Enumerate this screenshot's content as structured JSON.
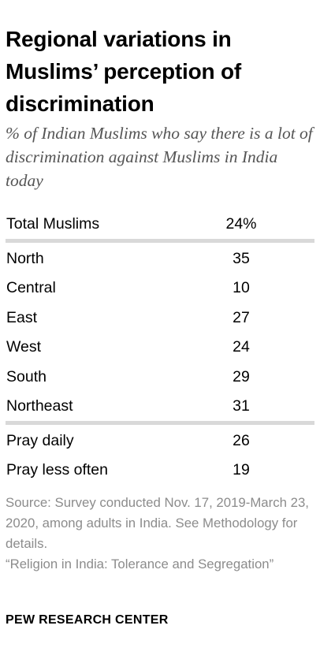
{
  "title": "Regional variations in Muslims’ perception of discrimination",
  "subtitle": "% of Indian Muslims who say there is a lot of discrimination against Muslims in India today",
  "chart_data": {
    "type": "table",
    "title": "Regional variations in Muslims’ perception of discrimination",
    "subtitle": "% of Indian Muslims who say there is a lot of discrimination against Muslims in India today",
    "groups": [
      {
        "rows": [
          {
            "label": "Total Muslims",
            "value": 24,
            "display": "24%"
          }
        ]
      },
      {
        "rows": [
          {
            "label": "North",
            "value": 35,
            "display": "35"
          },
          {
            "label": "Central",
            "value": 10,
            "display": "10"
          },
          {
            "label": "East",
            "value": 27,
            "display": "27"
          },
          {
            "label": "West",
            "value": 24,
            "display": "24"
          },
          {
            "label": "South",
            "value": 29,
            "display": "29"
          },
          {
            "label": "Northeast",
            "value": 31,
            "display": "31"
          }
        ]
      },
      {
        "rows": [
          {
            "label": "Pray daily",
            "value": 26,
            "display": "26"
          },
          {
            "label": "Pray less often",
            "value": 19,
            "display": "19"
          }
        ]
      }
    ]
  },
  "footer": {
    "source": "Source: Survey conducted Nov. 17, 2019-March 23, 2020, among adults in India. See Methodology for details.",
    "report": "“Religion in India: Tolerance and Segregation”",
    "brand": "PEW RESEARCH CENTER"
  },
  "colors": {
    "title": "#000000",
    "subtitle": "#555555",
    "divider": "#d9d9d9",
    "source": "#8c8c8c"
  }
}
